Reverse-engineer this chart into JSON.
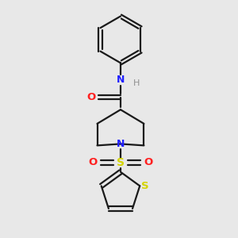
{
  "bg_color": "#e8e8e8",
  "line_color": "#1a1a1a",
  "N_color": "#2020ff",
  "O_color": "#ff2020",
  "S_color": "#d4d400",
  "H_color": "#909090",
  "line_width": 1.6,
  "figsize": [
    3.0,
    3.0
  ],
  "dpi": 100,
  "xlim": [
    0,
    3
  ],
  "ylim": [
    0,
    3
  ]
}
